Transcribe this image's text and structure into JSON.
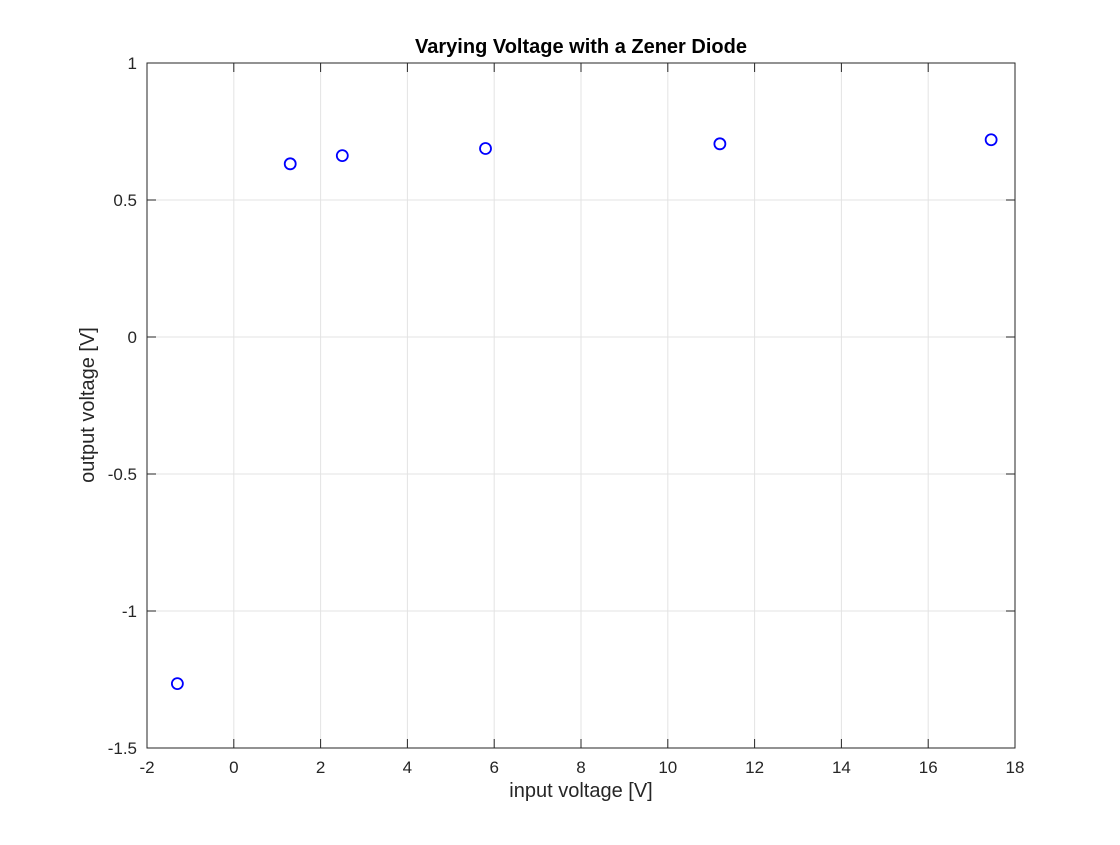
{
  "chart_data": {
    "type": "scatter",
    "title": "Varying Voltage with a Zener Diode",
    "xlabel": "input voltage [V]",
    "ylabel": "output voltage [V]",
    "xlim": [
      -2,
      18
    ],
    "ylim": [
      -1.5,
      1
    ],
    "xticks": [
      -2,
      0,
      2,
      4,
      6,
      8,
      10,
      12,
      14,
      16,
      18
    ],
    "xtick_labels": [
      "-2",
      "0",
      "2",
      "4",
      "6",
      "8",
      "10",
      "12",
      "14",
      "16",
      "18"
    ],
    "yticks": [
      -1.5,
      -1,
      -0.5,
      0,
      0.5,
      1
    ],
    "ytick_labels": [
      "-1.5",
      "-1",
      "-0.5",
      "0",
      "0.5",
      "1"
    ],
    "grid": true,
    "marker": "circle-open",
    "color": "#0000ff",
    "x": [
      -1.3,
      1.3,
      2.5,
      5.8,
      11.2,
      17.45
    ],
    "y": [
      -1.265,
      0.632,
      0.662,
      0.688,
      0.705,
      0.72
    ]
  }
}
